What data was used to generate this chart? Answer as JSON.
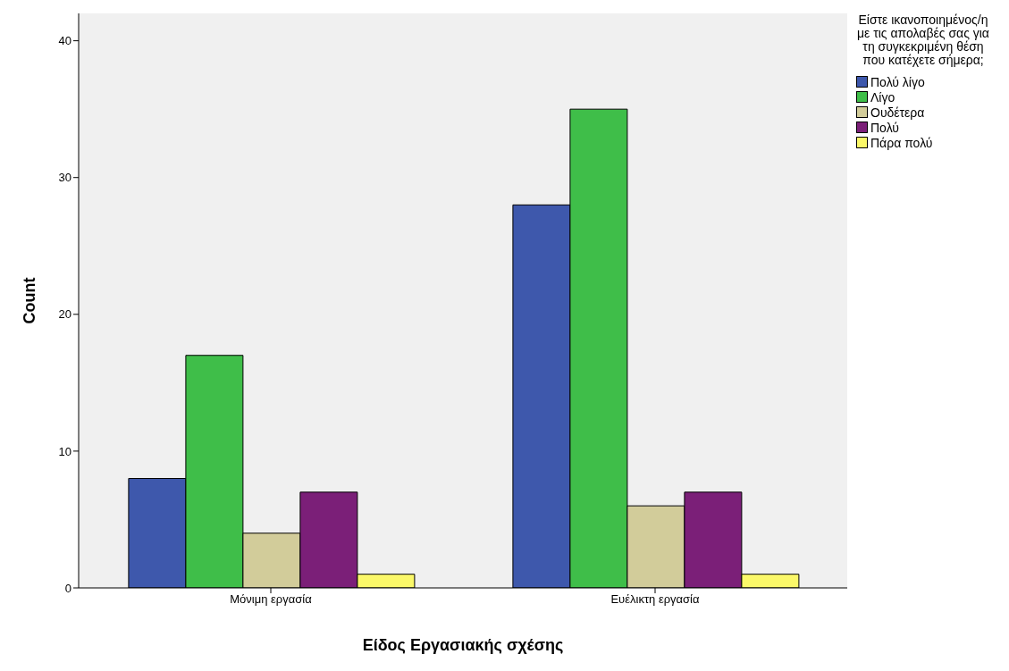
{
  "chart_data": {
    "type": "bar",
    "xlabel": "Είδος Εργασιακής σχέσης",
    "ylabel": "Count",
    "legend_title": "Είστε ικανοποιημένος/η με τις απολαβές σας για τη συγκεκριμένη θέση που κατέχετε σήμερα;",
    "categories": [
      "Μόνιμη εργασία",
      "Ευέλικτη εργασία"
    ],
    "series": [
      {
        "name": "Πολύ λίγο",
        "color": "#3e58ac",
        "values": [
          8,
          28
        ]
      },
      {
        "name": "Λίγο",
        "color": "#3fbe49",
        "values": [
          17,
          35
        ]
      },
      {
        "name": "Ουδέτερα",
        "color": "#d2cc9a",
        "values": [
          4,
          6
        ]
      },
      {
        "name": "Πολύ",
        "color": "#7b1f78",
        "values": [
          7,
          7
        ]
      },
      {
        "name": "Πάρα πολύ",
        "color": "#fbf869",
        "values": [
          1,
          1
        ]
      }
    ],
    "ylim": [
      0,
      42
    ],
    "yticks": [
      0,
      10,
      20,
      30,
      40
    ],
    "grid": false,
    "legend": "top right"
  }
}
